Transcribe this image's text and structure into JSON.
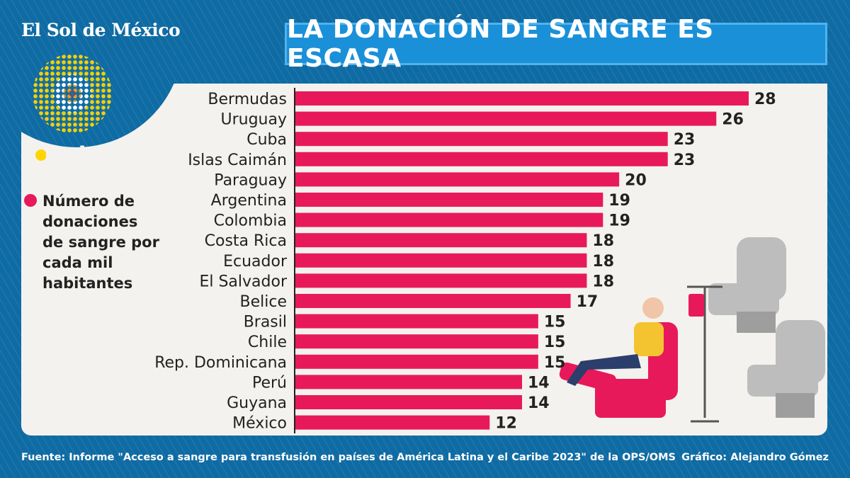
{
  "brand": {
    "logo": "El Sol de México",
    "data_logo": "Data"
  },
  "title": "LA DONACIÓN DE SANGRE ES ESCASA",
  "legend": {
    "label": "Número de donaciones de sangre por cada mil habitantes"
  },
  "colors": {
    "bar": "#e8195a",
    "background": "#0f6ba3",
    "panel": "#f4f2ee",
    "title_box": "#1a90d8"
  },
  "chart_data": {
    "type": "bar",
    "orientation": "horizontal",
    "title": "LA DONACIÓN DE SANGRE ES ESCASA",
    "categories": [
      "Bermudas",
      "Uruguay",
      "Cuba",
      "Islas Caimán",
      "Paraguay",
      "Argentina",
      "Colombia",
      "Costa Rica",
      "Ecuador",
      "El Salvador",
      "Belice",
      "Brasil",
      "Chile",
      "Rep. Dominicana",
      "Perú",
      "Guyana",
      "México"
    ],
    "values": [
      28,
      26,
      23,
      23,
      20,
      19,
      19,
      18,
      18,
      18,
      17,
      15,
      15,
      15,
      14,
      14,
      12
    ],
    "series": [
      {
        "name": "Número de donaciones de sangre por cada mil habitantes",
        "values": [
          28,
          26,
          23,
          23,
          20,
          19,
          19,
          18,
          18,
          18,
          17,
          15,
          15,
          15,
          14,
          14,
          12
        ]
      }
    ],
    "xlim": [
      0,
      28
    ],
    "grid": false,
    "data_labels": true,
    "legend_position": "left"
  },
  "footer": {
    "source": "Fuente: Informe \"Acceso a sangre para transfusión en países de América Latina y el Caribe 2023\" de la OPS/OMS",
    "credit": "Gráfico: Alejandro Gómez"
  }
}
